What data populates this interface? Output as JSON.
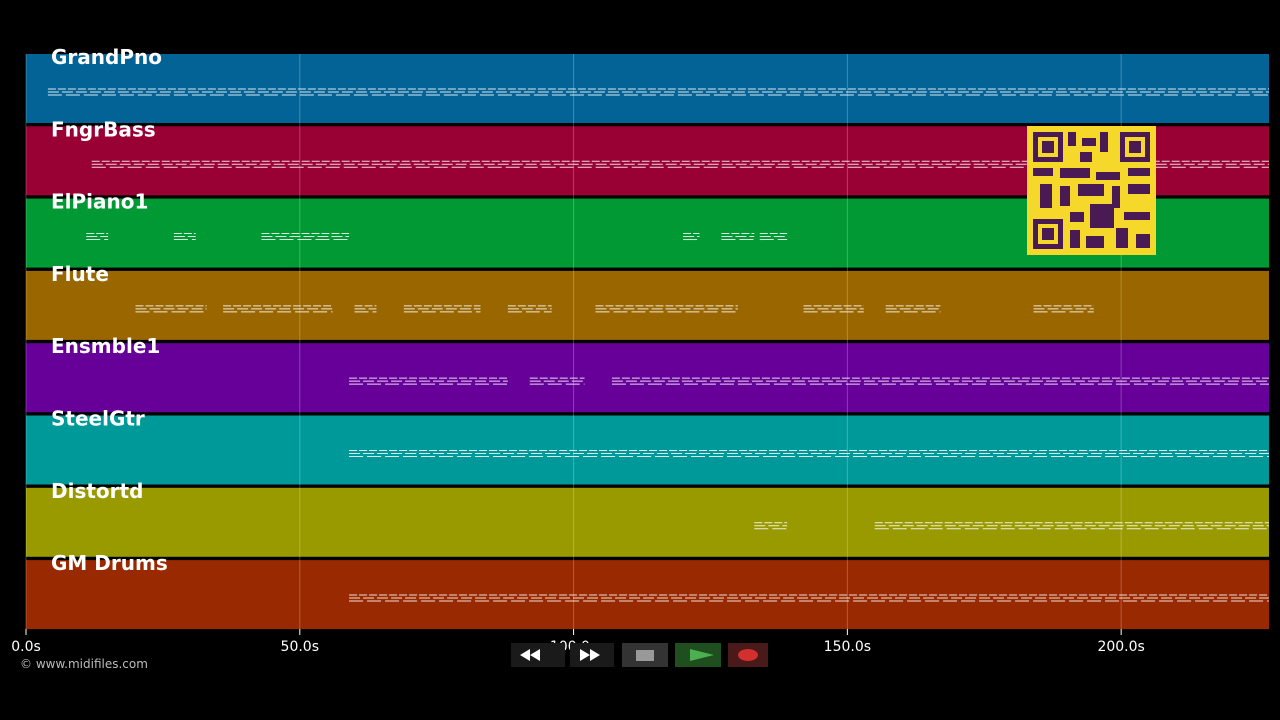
{
  "timeline": {
    "xlim": [
      0,
      227
    ],
    "ticks": [
      {
        "value": 0,
        "label": "0.0s"
      },
      {
        "value": 50,
        "label": "50.0s"
      },
      {
        "value": 100,
        "label": "100.0s"
      },
      {
        "value": 150,
        "label": "150.0s"
      },
      {
        "value": 200,
        "label": "200.0s"
      }
    ],
    "tracks": [
      {
        "name": "GrandPno",
        "color": "#036397",
        "spans": [
          [
            4,
            227
          ]
        ]
      },
      {
        "name": "FngrBass",
        "color": "#990033",
        "spans": [
          [
            12,
            227
          ]
        ]
      },
      {
        "name": "ElPiano1",
        "color": "#009933",
        "spans": [
          [
            11,
            15
          ],
          [
            27,
            31
          ],
          [
            43,
            59
          ],
          [
            120,
            123
          ],
          [
            127,
            133
          ],
          [
            134,
            139
          ]
        ]
      },
      {
        "name": "Flute",
        "color": "#996600",
        "spans": [
          [
            20,
            33
          ],
          [
            36,
            56
          ],
          [
            60,
            64
          ],
          [
            69,
            83
          ],
          [
            88,
            96
          ],
          [
            104,
            130
          ],
          [
            142,
            153
          ],
          [
            157,
            167
          ],
          [
            184,
            195
          ]
        ]
      },
      {
        "name": "Ensmble1",
        "color": "#660099",
        "spans": [
          [
            59,
            88
          ],
          [
            92,
            102
          ],
          [
            107,
            227
          ]
        ]
      },
      {
        "name": "SteelGtr",
        "color": "#009999",
        "spans": [
          [
            59,
            227
          ]
        ]
      },
      {
        "name": "Distortd",
        "color": "#999900",
        "spans": [
          [
            133,
            139
          ],
          [
            155,
            227
          ]
        ]
      },
      {
        "name": "GM Drums",
        "color": "#992900",
        "spans": [
          [
            59,
            227
          ]
        ]
      }
    ]
  },
  "footer": {
    "copyright": "© www.midifiles.com"
  }
}
